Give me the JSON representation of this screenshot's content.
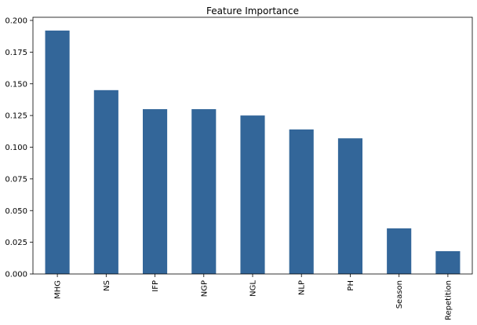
{
  "chart_data": {
    "type": "bar",
    "title": "Feature Importance",
    "xlabel": "",
    "ylabel": "",
    "categories": [
      "MHG",
      "NS",
      "IFP",
      "NGP",
      "NGL",
      "NLP",
      "PH",
      "Season",
      "Repetition"
    ],
    "values": [
      0.192,
      0.145,
      0.13,
      0.13,
      0.125,
      0.114,
      0.107,
      0.036,
      0.018
    ],
    "ylim": [
      0,
      0.2
    ],
    "yticks": [
      0.0,
      0.025,
      0.05,
      0.075,
      0.1,
      0.125,
      0.15,
      0.175,
      0.2
    ],
    "ytick_labels": [
      "0.000",
      "0.025",
      "0.050",
      "0.075",
      "0.100",
      "0.125",
      "0.150",
      "0.175",
      "0.200"
    ],
    "grid": false,
    "legend": "none",
    "bar_color": "#336699"
  }
}
